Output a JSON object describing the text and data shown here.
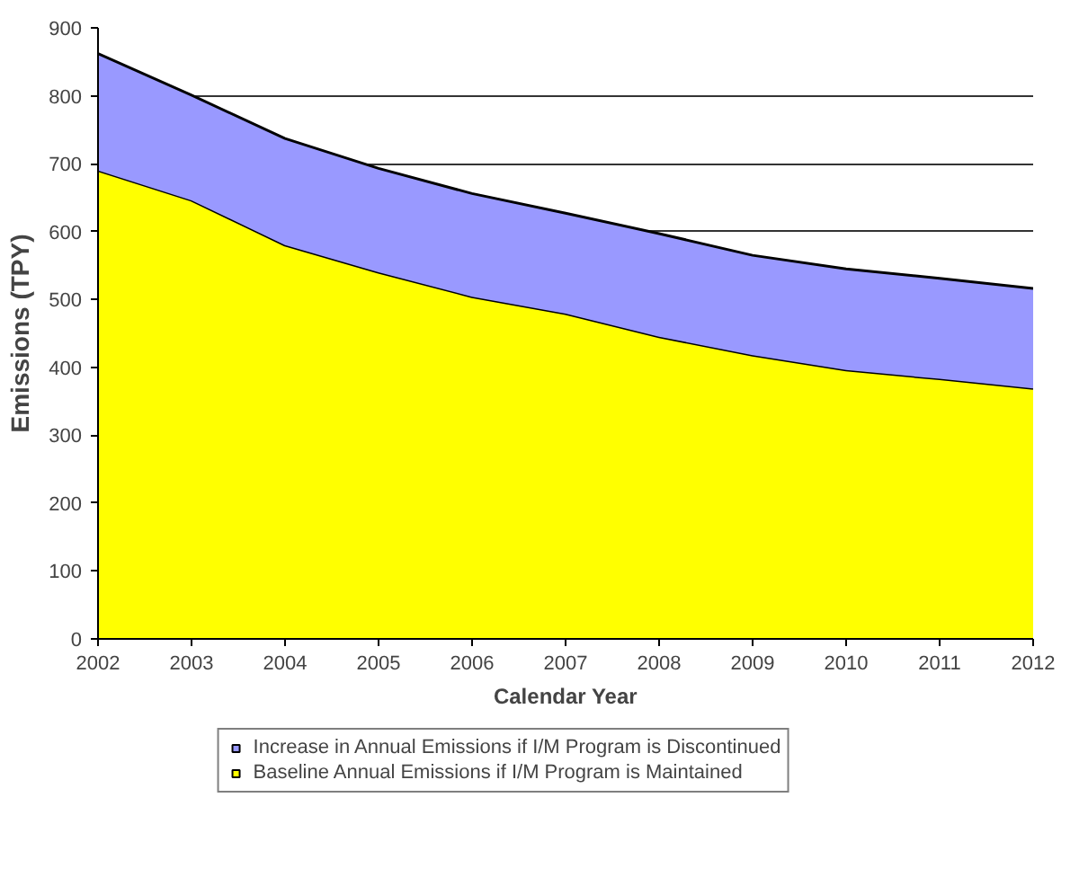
{
  "chart_data": {
    "type": "area",
    "stacked": true,
    "xlabel": "Calendar Year",
    "ylabel": "Emissions (TPY)",
    "x": [
      2002,
      2003,
      2004,
      2005,
      2006,
      2007,
      2008,
      2009,
      2010,
      2011,
      2012
    ],
    "series": [
      {
        "name": "Baseline Annual Emissions if I/M Program is Maintained",
        "color": "#ffff00",
        "values": [
          690,
          646,
          580,
          540,
          504,
          479,
          445,
          418,
          396,
          383,
          369
        ]
      },
      {
        "name": "Increase in Annual Emissions if I/M Program is Discontinued",
        "color": "#9999ff",
        "values": [
          172,
          155,
          157,
          153,
          152,
          148,
          152,
          147,
          149,
          148,
          147
        ]
      }
    ],
    "xlim": [
      2002,
      2012
    ],
    "xticks": [
      2002,
      2003,
      2004,
      2005,
      2006,
      2007,
      2008,
      2009,
      2010,
      2011,
      2012
    ],
    "ylim": [
      0,
      900
    ],
    "yticks": [
      0,
      100,
      200,
      300,
      400,
      500,
      600,
      700,
      800,
      900
    ],
    "grid": "y",
    "legend": "bottom"
  }
}
